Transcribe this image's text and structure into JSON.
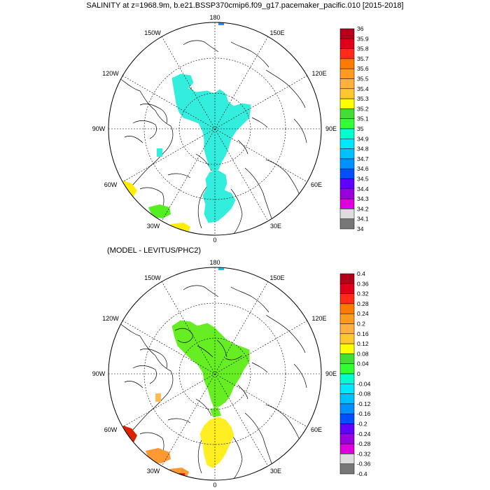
{
  "title": "SALINITY at z=1968.9m, b.e21.BSSP370cmip6.f09_g17.pacemaker_pacific.010 [2015-2018]",
  "subtitle": "(MODEL - LEVITUS/PHC2)",
  "longitude_labels": {
    "top": "180",
    "top_left": "150W",
    "top_right": "150E",
    "upper_left": "120W",
    "upper_right": "120E",
    "left": "90W",
    "right": "90E",
    "lower_left": "60W",
    "lower_right": "60E",
    "bottom_left": "30W",
    "bottom_right": "30E",
    "bottom": "0"
  },
  "colorbar_top": {
    "labels": [
      "36",
      "35.9",
      "35.8",
      "35.7",
      "35.6",
      "35.5",
      "35.4",
      "35.3",
      "35.2",
      "35.1",
      "35",
      "34.9",
      "34.8",
      "34.7",
      "34.6",
      "34.5",
      "34.4",
      "34.3",
      "34.2",
      "34.1",
      "34"
    ],
    "colors": [
      "#b3001a",
      "#e0001a",
      "#ff2a1a",
      "#ff7a00",
      "#ff9a20",
      "#ffb040",
      "#ffc830",
      "#ffff00",
      "#44dd33",
      "#33ff33",
      "#00ffcc",
      "#00e8ff",
      "#00c0ff",
      "#0090ff",
      "#0050ff",
      "#6000ff",
      "#9900dd",
      "#dd00dd",
      "#dddddd",
      "#777777"
    ]
  },
  "colorbar_bottom": {
    "labels": [
      "0.4",
      "0.36",
      "0.32",
      "0.28",
      "0.24",
      "0.2",
      "0.16",
      "0.12",
      "0.08",
      "0.04",
      "0",
      "-0.04",
      "-0.08",
      "-0.12",
      "-0.16",
      "-0.2",
      "-0.24",
      "-0.28",
      "-0.32",
      "-0.36",
      "-0.4"
    ],
    "colors": [
      "#b3001a",
      "#e0001a",
      "#ff2a1a",
      "#ff7a00",
      "#ff9a20",
      "#ffb040",
      "#ffc830",
      "#ffff00",
      "#44dd33",
      "#33ff33",
      "#00ffcc",
      "#00e8ff",
      "#00c0ff",
      "#0090ff",
      "#0050ff",
      "#6000ff",
      "#9900dd",
      "#dd00dd",
      "#dddddd",
      "#777777"
    ]
  },
  "colors": {
    "top_main_field": "#33eedd",
    "bottom_main_field": "#66ee22",
    "bottom_southern_field": "#ffee22",
    "orange_patch": "#ff9933",
    "light_orange_patch": "#ffbb55",
    "red_patch": "#dd2200",
    "green_patch": "#55ee22",
    "yellow_patch": "#ffee00",
    "top_blue_patch": "#3388ff",
    "top_pole_patch": "#00ccee"
  }
}
